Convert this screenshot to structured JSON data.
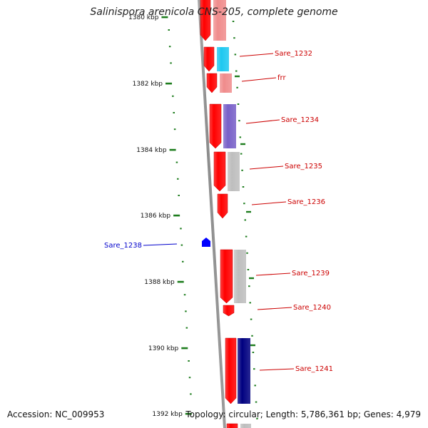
{
  "title": "Salinispora arenicola CNS-205, complete genome",
  "accession": "Accession: NC_009953",
  "summary": "Topology: circular; Length: 5,786,361 bp; Genes: 4,979",
  "colors": {
    "backbone": "#8c8c8c",
    "forward_strand": "#ff0000",
    "tick": "#1e7d1e",
    "label_forward": "#cc0000",
    "label_reverse": "#0000cc"
  },
  "ruler": {
    "ticks": [
      {
        "label": "1380 kbp",
        "partial": true
      },
      {
        "label": "1382 kbp"
      },
      {
        "label": "1384 kbp"
      },
      {
        "label": "1386 kbp"
      },
      {
        "label": "1388 kbp"
      },
      {
        "label": "1390 kbp"
      },
      {
        "label": "1392 kbp"
      }
    ]
  },
  "genes": [
    {
      "name": "",
      "strand": "forward",
      "function_color": "#f08c8c"
    },
    {
      "name": "Sare_1232",
      "strand": "forward",
      "function_color": "#1ec8f0"
    },
    {
      "name": "frr",
      "strand": "forward",
      "function_color": "#f08c8c"
    },
    {
      "name": "Sare_1234",
      "strand": "forward",
      "function_color": "#7860c8"
    },
    {
      "name": "Sare_1235",
      "strand": "forward",
      "function_color": "#bebebe"
    },
    {
      "name": "Sare_1236",
      "strand": "forward",
      "function_color": ""
    },
    {
      "name": "Sare_1238",
      "strand": "reverse",
      "function_color": "#0000ff"
    },
    {
      "name": "Sare_1239",
      "strand": "forward",
      "function_color": "#bebebe"
    },
    {
      "name": "Sare_1240",
      "strand": "forward",
      "function_color": ""
    },
    {
      "name": "Sare_1241",
      "strand": "forward",
      "function_color": "#000080"
    },
    {
      "name": "",
      "strand": "forward",
      "function_color": "#bebebe"
    }
  ]
}
